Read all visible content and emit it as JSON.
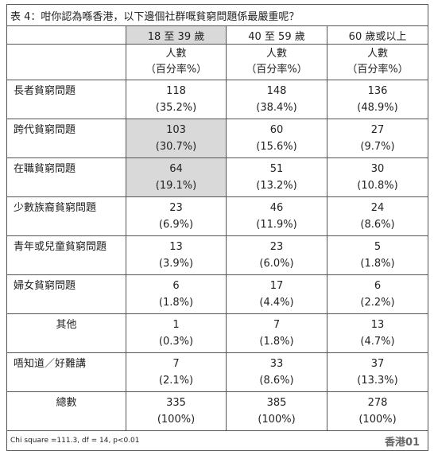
{
  "header": {
    "title": "表 4：咁你認為喺香港，以下邊個社群嘅貧窮問題係最嚴重呢？"
  },
  "table": {
    "columns": [
      "18 至 39 歲",
      "40 至 59 歲",
      "60 歲或以上"
    ],
    "unit": [
      "人數",
      "（百分率%）"
    ],
    "rows": [
      {
        "label": "長者貧窮問題",
        "cells": [
          {
            "count": 118,
            "percent": "(35.2%)"
          },
          {
            "count": 148,
            "percent": "(38.4%)"
          },
          {
            "count": 136,
            "percent": "(48.9%)"
          }
        ]
      },
      {
        "label": "跨代貧窮問題",
        "cells": [
          {
            "count": 103,
            "percent": "(30.7%)"
          },
          {
            "count": 60,
            "percent": "(15.6%)"
          },
          {
            "count": 27,
            "percent": "(9.7%)"
          }
        ]
      },
      {
        "label": "在職貧窮問題",
        "cells": [
          {
            "count": 64,
            "percent": "(19.1%)"
          },
          {
            "count": 51,
            "percent": "(13.2%)"
          },
          {
            "count": 30,
            "percent": "(10.8%)"
          }
        ]
      },
      {
        "label": "少數族裔貧窮問題",
        "cells": [
          {
            "count": 23,
            "percent": "(6.9%)"
          },
          {
            "count": 46,
            "percent": "(11.9%)"
          },
          {
            "count": 24,
            "percent": "(8.6%)"
          }
        ]
      },
      {
        "label": "青年或兒童貧窮問題",
        "cells": [
          {
            "count": 13,
            "percent": "(3.9%)"
          },
          {
            "count": 23,
            "percent": "(6.0%)"
          },
          {
            "count": 5,
            "percent": "(1.8%)"
          }
        ]
      },
      {
        "label": "婦女貧窮問題",
        "cells": [
          {
            "count": 6,
            "percent": "(1.8%)"
          },
          {
            "count": 17,
            "percent": "(4.4%)"
          },
          {
            "count": 6,
            "percent": "(2.2%)"
          }
        ]
      },
      {
        "label": "其他",
        "cells": [
          {
            "count": 1,
            "percent": "(0.3%)"
          },
          {
            "count": 7,
            "percent": "(1.8%)"
          },
          {
            "count": 13,
            "percent": "(4.7%)"
          }
        ]
      },
      {
        "label": "唔知道／好難講",
        "cells": [
          {
            "count": 7,
            "percent": "(2.1%)"
          },
          {
            "count": 33,
            "percent": "(8.6%)"
          },
          {
            "count": 37,
            "percent": "(13.3%)"
          }
        ]
      },
      {
        "label": "總數",
        "cells": [
          {
            "count": 335,
            "percent": "(100%)"
          },
          {
            "count": 385,
            "percent": "(100%)"
          },
          {
            "count": 278,
            "percent": "(100%)"
          }
        ]
      }
    ],
    "note": "Chi square =111.3, df = 14, p<0.01",
    "watermark": "香港01"
  }
}
